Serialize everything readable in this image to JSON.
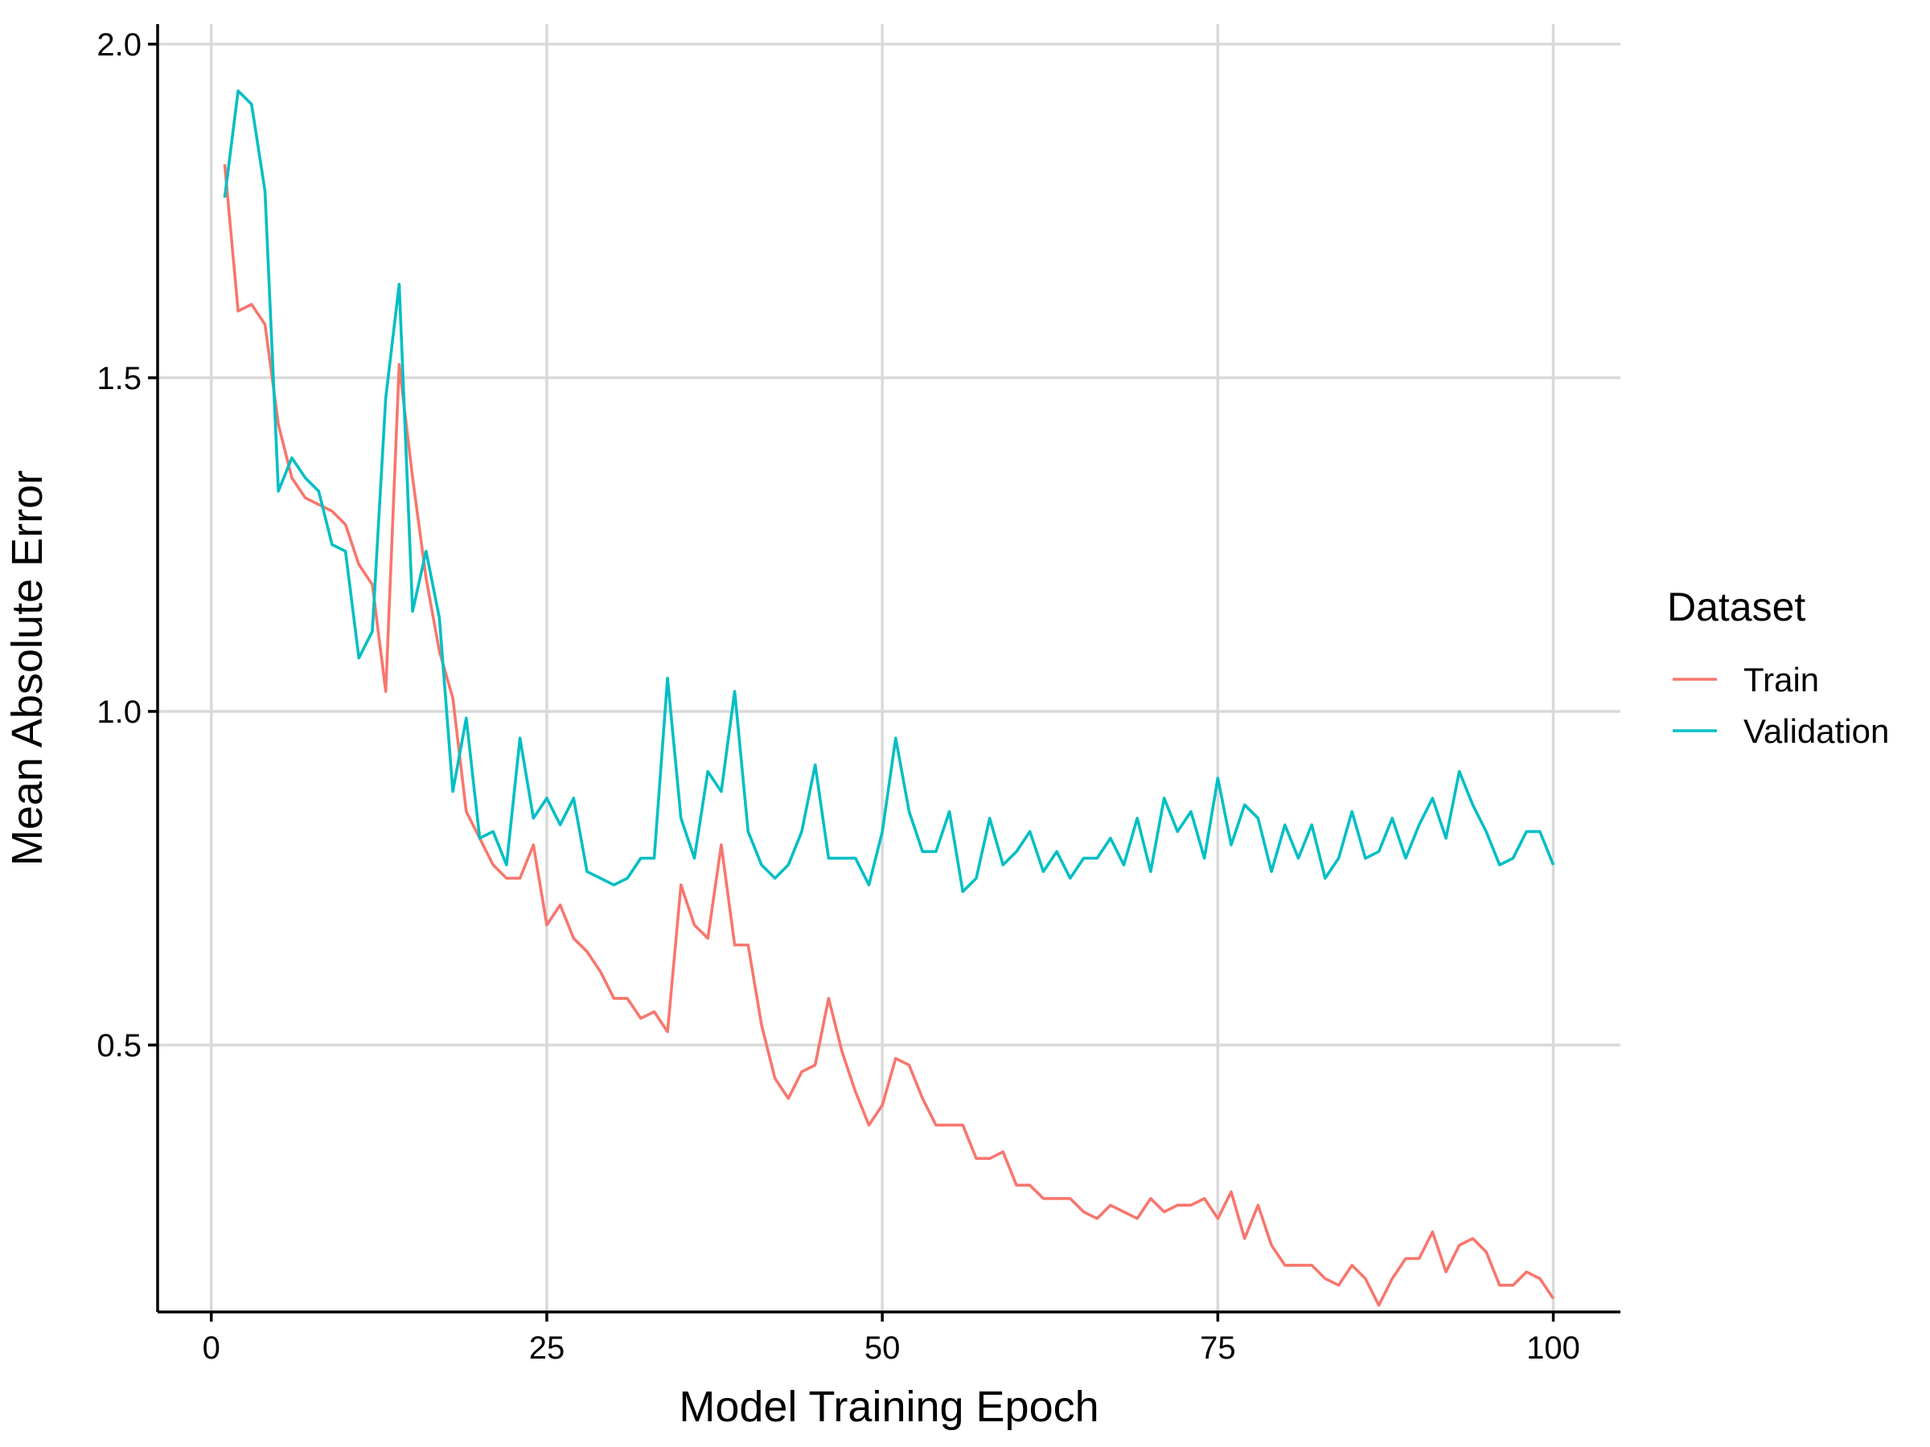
{
  "chart_data": {
    "type": "line",
    "xlabel": "Model Training Epoch",
    "ylabel": "Mean Absolute Error",
    "xlim": [
      -4,
      105
    ],
    "ylim": [
      0.1,
      2.03
    ],
    "x_ticks": [
      0,
      25,
      50,
      75,
      100
    ],
    "y_ticks": [
      0.5,
      1.0,
      1.5,
      2.0
    ],
    "x_tick_labels": [
      "0",
      "25",
      "50",
      "75",
      "100"
    ],
    "y_tick_labels": [
      "0.5",
      "1.0",
      "1.5",
      "2.0"
    ],
    "grid": true,
    "legend": {
      "title": "Dataset",
      "position": "right"
    },
    "x": [
      1,
      2,
      3,
      4,
      5,
      6,
      7,
      8,
      9,
      10,
      11,
      12,
      13,
      14,
      15,
      16,
      17,
      18,
      19,
      20,
      21,
      22,
      23,
      24,
      25,
      26,
      27,
      28,
      29,
      30,
      31,
      32,
      33,
      34,
      35,
      36,
      37,
      38,
      39,
      40,
      41,
      42,
      43,
      44,
      45,
      46,
      47,
      48,
      49,
      50,
      51,
      52,
      53,
      54,
      55,
      56,
      57,
      58,
      59,
      60,
      61,
      62,
      63,
      64,
      65,
      66,
      67,
      68,
      69,
      70,
      71,
      72,
      73,
      74,
      75,
      76,
      77,
      78,
      79,
      80,
      81,
      82,
      83,
      84,
      85,
      86,
      87,
      88,
      89,
      90,
      91,
      92,
      93,
      94,
      95,
      96,
      97,
      98,
      99,
      100
    ],
    "series": [
      {
        "name": "Train",
        "color": "#F8766D",
        "values": [
          1.82,
          1.6,
          1.61,
          1.58,
          1.43,
          1.35,
          1.32,
          1.31,
          1.3,
          1.28,
          1.22,
          1.19,
          1.03,
          1.52,
          1.35,
          1.2,
          1.09,
          1.02,
          0.85,
          0.81,
          0.77,
          0.75,
          0.75,
          0.8,
          0.68,
          0.71,
          0.66,
          0.64,
          0.61,
          0.57,
          0.57,
          0.54,
          0.55,
          0.52,
          0.74,
          0.68,
          0.66,
          0.8,
          0.65,
          0.65,
          0.53,
          0.45,
          0.42,
          0.46,
          0.47,
          0.57,
          0.49,
          0.43,
          0.38,
          0.41,
          0.48,
          0.47,
          0.42,
          0.38,
          0.38,
          0.38,
          0.33,
          0.33,
          0.34,
          0.29,
          0.29,
          0.27,
          0.27,
          0.27,
          0.25,
          0.24,
          0.26,
          0.25,
          0.24,
          0.27,
          0.25,
          0.26,
          0.26,
          0.27,
          0.24,
          0.28,
          0.21,
          0.26,
          0.2,
          0.17,
          0.17,
          0.17,
          0.15,
          0.14,
          0.17,
          0.15,
          0.11,
          0.15,
          0.18,
          0.18,
          0.22,
          0.16,
          0.2,
          0.21,
          0.19,
          0.14,
          0.14,
          0.16,
          0.15,
          0.12
        ]
      },
      {
        "name": "Validation",
        "color": "#00BFC4",
        "values": [
          1.77,
          1.93,
          1.91,
          1.78,
          1.33,
          1.38,
          1.35,
          1.33,
          1.25,
          1.24,
          1.08,
          1.12,
          1.47,
          1.64,
          1.15,
          1.24,
          1.14,
          0.88,
          0.99,
          0.81,
          0.82,
          0.77,
          0.96,
          0.84,
          0.87,
          0.83,
          0.87,
          0.76,
          0.75,
          0.74,
          0.75,
          0.78,
          0.78,
          1.05,
          0.84,
          0.78,
          0.91,
          0.88,
          1.03,
          0.82,
          0.77,
          0.75,
          0.77,
          0.82,
          0.92,
          0.78,
          0.78,
          0.78,
          0.74,
          0.82,
          0.96,
          0.85,
          0.79,
          0.79,
          0.85,
          0.73,
          0.75,
          0.84,
          0.77,
          0.79,
          0.82,
          0.76,
          0.79,
          0.75,
          0.78,
          0.78,
          0.81,
          0.77,
          0.84,
          0.76,
          0.87,
          0.82,
          0.85,
          0.78,
          0.9,
          0.8,
          0.86,
          0.84,
          0.76,
          0.83,
          0.78,
          0.83,
          0.75,
          0.78,
          0.85,
          0.78,
          0.79,
          0.84,
          0.78,
          0.83,
          0.87,
          0.81,
          0.91,
          0.86,
          0.82,
          0.77,
          0.78,
          0.82,
          0.82,
          0.77
        ]
      }
    ]
  }
}
